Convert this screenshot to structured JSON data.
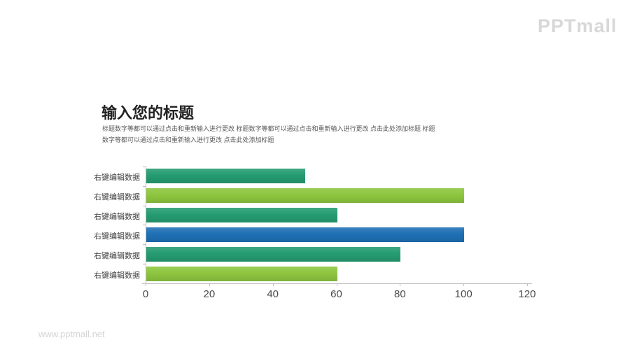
{
  "page": {
    "logo": "PPTmall",
    "watermark": "www.pptmall.net",
    "background_color": "#ffffff"
  },
  "header": {
    "title": "输入您的标题",
    "subtitle_lines": [
      "标题数字等都可以通过点击和重新输入进行更改 标题数字等都可以通过点击和重新输入进行更改 点击此处添加标题 标题",
      "数字等都可以通过点击和重新输入进行更改 点击此处添加标题"
    ]
  },
  "chart_data": {
    "type": "bar",
    "orientation": "horizontal",
    "title": "",
    "xlabel": "",
    "ylabel": "",
    "categories": [
      "右键编辑数据",
      "右键编辑数据",
      "右键编辑数据",
      "右键编辑数据",
      "右键编辑数据",
      "右键编辑数据"
    ],
    "values": [
      50,
      100,
      60,
      100,
      80,
      60
    ],
    "bar_colors": [
      "#259C72",
      "#8DC63F",
      "#259C72",
      "#1F70B6",
      "#259C72",
      "#8DC63F"
    ],
    "xlim": [
      0,
      120
    ],
    "x_ticks": [
      0,
      20,
      40,
      60,
      80,
      100,
      120
    ],
    "grid": false,
    "legend": false,
    "axis_color": "#bfbfbf"
  },
  "colors": {
    "green": "#259C72",
    "light_green": "#8DC63F",
    "blue": "#1F70B6",
    "axis": "#bfbfbf",
    "title_text": "#222222",
    "subtitle_text": "#595959",
    "label_text": "#404040",
    "logo_gray": "#d8d8d8"
  }
}
